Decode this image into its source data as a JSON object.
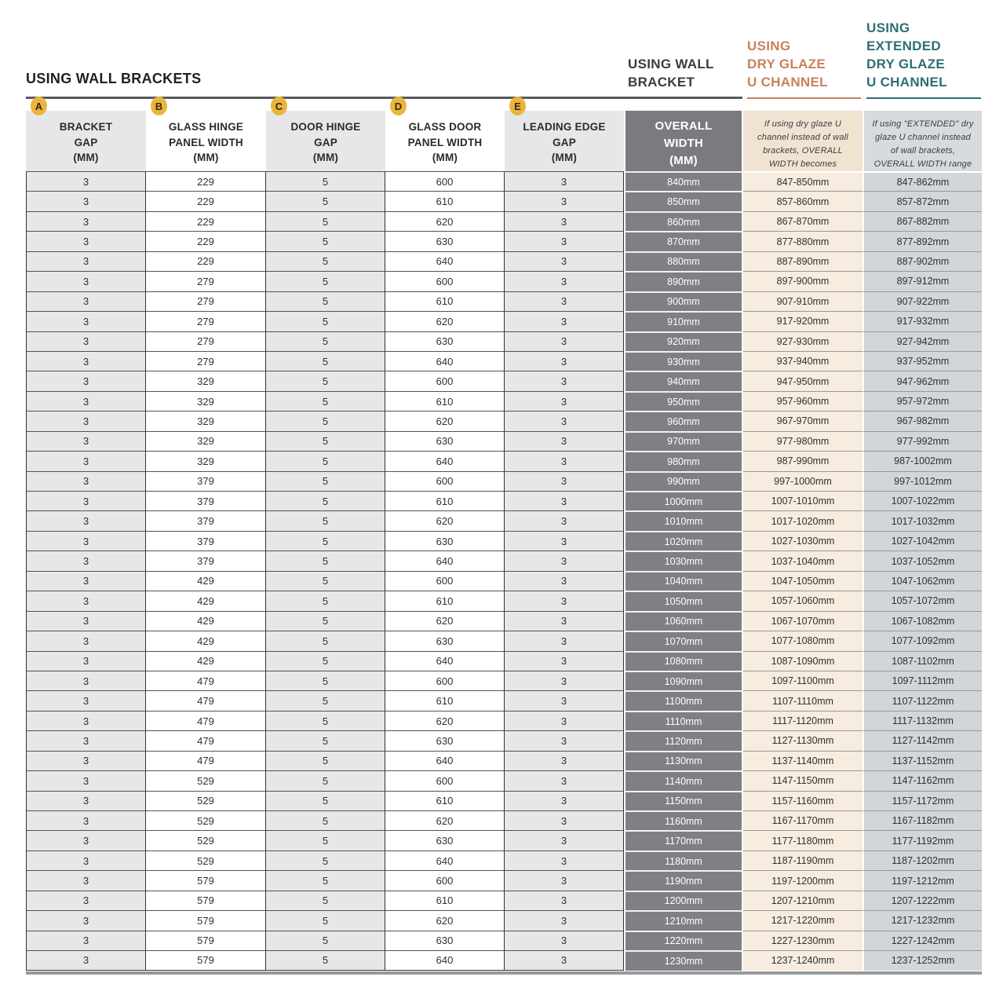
{
  "title": "USING WALL BRACKETS",
  "sections": {
    "wall_bracket": "USING WALL\nBRACKET",
    "dry_glaze": "USING\nDRY GLAZE\nU CHANNEL",
    "extended_dry_glaze": "USING\nEXTENDED\nDRY GLAZE\nU CHANNEL"
  },
  "colors": {
    "badge_yellow": "#EAB53C",
    "accent_orange": "#C8815C",
    "accent_teal": "#2E6E73",
    "overall_gray": "#7E8083",
    "light_gray": "#E6E7E8",
    "dry_bg": "#F6ECDF",
    "ext_bg": "#D2D6D9",
    "dry_header_bg": "#F1E3D2",
    "ext_header_bg": "#D8DBDD"
  },
  "table": {
    "columns": [
      {
        "badge": "A",
        "label": "BRACKET\nGAP\n(MM)"
      },
      {
        "badge": "B",
        "label": "GLASS HINGE\nPANEL WIDTH\n(MM)"
      },
      {
        "badge": "C",
        "label": "DOOR HINGE\nGAP\n(MM)"
      },
      {
        "badge": "D",
        "label": "GLASS DOOR\nPANEL WIDTH\n(MM)"
      },
      {
        "badge": "E",
        "label": "LEADING EDGE\nGAP\n(MM)"
      },
      {
        "badge": "",
        "label": "OVERALL\nWIDTH\n(MM)"
      },
      {
        "badge": "",
        "label": "If using dry glaze U channel instead of wall brackets, OVERALL WIDTH becomes"
      },
      {
        "badge": "",
        "label": "If using \"EXTENDED\" dry glaze U channel instead of wall brackets, OVERALL WIDTH range becomes"
      }
    ],
    "rows": [
      [
        "3",
        "229",
        "5",
        "600",
        "3",
        "840mm",
        "847-850mm",
        "847-862mm"
      ],
      [
        "3",
        "229",
        "5",
        "610",
        "3",
        "850mm",
        "857-860mm",
        "857-872mm"
      ],
      [
        "3",
        "229",
        "5",
        "620",
        "3",
        "860mm",
        "867-870mm",
        "867-882mm"
      ],
      [
        "3",
        "229",
        "5",
        "630",
        "3",
        "870mm",
        "877-880mm",
        "877-892mm"
      ],
      [
        "3",
        "229",
        "5",
        "640",
        "3",
        "880mm",
        "887-890mm",
        "887-902mm"
      ],
      [
        "3",
        "279",
        "5",
        "600",
        "3",
        "890mm",
        "897-900mm",
        "897-912mm"
      ],
      [
        "3",
        "279",
        "5",
        "610",
        "3",
        "900mm",
        "907-910mm",
        "907-922mm"
      ],
      [
        "3",
        "279",
        "5",
        "620",
        "3",
        "910mm",
        "917-920mm",
        "917-932mm"
      ],
      [
        "3",
        "279",
        "5",
        "630",
        "3",
        "920mm",
        "927-930mm",
        "927-942mm"
      ],
      [
        "3",
        "279",
        "5",
        "640",
        "3",
        "930mm",
        "937-940mm",
        "937-952mm"
      ],
      [
        "3",
        "329",
        "5",
        "600",
        "3",
        "940mm",
        "947-950mm",
        "947-962mm"
      ],
      [
        "3",
        "329",
        "5",
        "610",
        "3",
        "950mm",
        "957-960mm",
        "957-972mm"
      ],
      [
        "3",
        "329",
        "5",
        "620",
        "3",
        "960mm",
        "967-970mm",
        "967-982mm"
      ],
      [
        "3",
        "329",
        "5",
        "630",
        "3",
        "970mm",
        "977-980mm",
        "977-992mm"
      ],
      [
        "3",
        "329",
        "5",
        "640",
        "3",
        "980mm",
        "987-990mm",
        "987-1002mm"
      ],
      [
        "3",
        "379",
        "5",
        "600",
        "3",
        "990mm",
        "997-1000mm",
        "997-1012mm"
      ],
      [
        "3",
        "379",
        "5",
        "610",
        "3",
        "1000mm",
        "1007-1010mm",
        "1007-1022mm"
      ],
      [
        "3",
        "379",
        "5",
        "620",
        "3",
        "1010mm",
        "1017-1020mm",
        "1017-1032mm"
      ],
      [
        "3",
        "379",
        "5",
        "630",
        "3",
        "1020mm",
        "1027-1030mm",
        "1027-1042mm"
      ],
      [
        "3",
        "379",
        "5",
        "640",
        "3",
        "1030mm",
        "1037-1040mm",
        "1037-1052mm"
      ],
      [
        "3",
        "429",
        "5",
        "600",
        "3",
        "1040mm",
        "1047-1050mm",
        "1047-1062mm"
      ],
      [
        "3",
        "429",
        "5",
        "610",
        "3",
        "1050mm",
        "1057-1060mm",
        "1057-1072mm"
      ],
      [
        "3",
        "429",
        "5",
        "620",
        "3",
        "1060mm",
        "1067-1070mm",
        "1067-1082mm"
      ],
      [
        "3",
        "429",
        "5",
        "630",
        "3",
        "1070mm",
        "1077-1080mm",
        "1077-1092mm"
      ],
      [
        "3",
        "429",
        "5",
        "640",
        "3",
        "1080mm",
        "1087-1090mm",
        "1087-1102mm"
      ],
      [
        "3",
        "479",
        "5",
        "600",
        "3",
        "1090mm",
        "1097-1100mm",
        "1097-1112mm"
      ],
      [
        "3",
        "479",
        "5",
        "610",
        "3",
        "1100mm",
        "1107-1110mm",
        "1107-1122mm"
      ],
      [
        "3",
        "479",
        "5",
        "620",
        "3",
        "1110mm",
        "1117-1120mm",
        "1117-1132mm"
      ],
      [
        "3",
        "479",
        "5",
        "630",
        "3",
        "1120mm",
        "1127-1130mm",
        "1127-1142mm"
      ],
      [
        "3",
        "479",
        "5",
        "640",
        "3",
        "1130mm",
        "1137-1140mm",
        "1137-1152mm"
      ],
      [
        "3",
        "529",
        "5",
        "600",
        "3",
        "1140mm",
        "1147-1150mm",
        "1147-1162mm"
      ],
      [
        "3",
        "529",
        "5",
        "610",
        "3",
        "1150mm",
        "1157-1160mm",
        "1157-1172mm"
      ],
      [
        "3",
        "529",
        "5",
        "620",
        "3",
        "1160mm",
        "1167-1170mm",
        "1167-1182mm"
      ],
      [
        "3",
        "529",
        "5",
        "630",
        "3",
        "1170mm",
        "1177-1180mm",
        "1177-1192mm"
      ],
      [
        "3",
        "529",
        "5",
        "640",
        "3",
        "1180mm",
        "1187-1190mm",
        "1187-1202mm"
      ],
      [
        "3",
        "579",
        "5",
        "600",
        "3",
        "1190mm",
        "1197-1200mm",
        "1197-1212mm"
      ],
      [
        "3",
        "579",
        "5",
        "610",
        "3",
        "1200mm",
        "1207-1210mm",
        "1207-1222mm"
      ],
      [
        "3",
        "579",
        "5",
        "620",
        "3",
        "1210mm",
        "1217-1220mm",
        "1217-1232mm"
      ],
      [
        "3",
        "579",
        "5",
        "630",
        "3",
        "1220mm",
        "1227-1230mm",
        "1227-1242mm"
      ],
      [
        "3",
        "579",
        "5",
        "640",
        "3",
        "1230mm",
        "1237-1240mm",
        "1237-1252mm"
      ]
    ]
  }
}
